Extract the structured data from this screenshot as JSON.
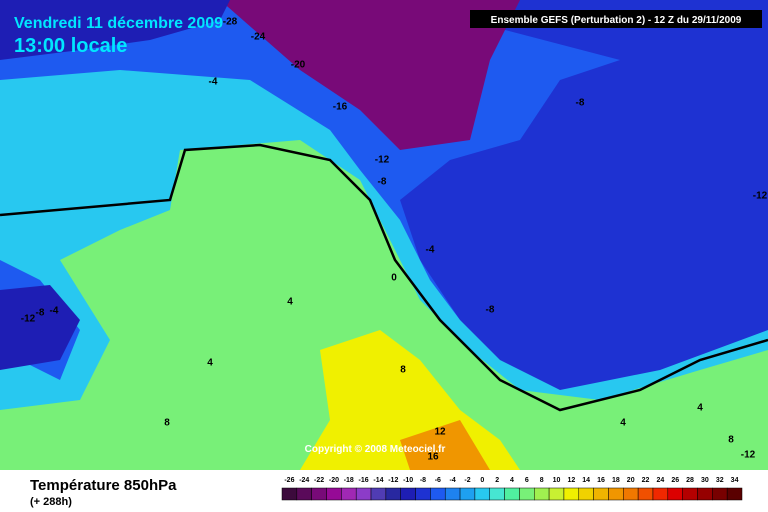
{
  "header": {
    "date": "Vendredi 11 décembre 2009",
    "time": "13:00 locale",
    "model": "Ensemble GEFS (Perturbation 2)  -  12 Z du 29/11/2009"
  },
  "map": {
    "contour_labels": [
      "-28",
      "-24",
      "-20",
      "-16",
      "-12",
      "-8",
      "-4",
      "-8",
      "-12",
      "-4",
      "0",
      "4",
      "-8",
      "-12",
      "-8",
      "-4",
      "4",
      "8",
      "8",
      "12",
      "16",
      "4",
      "4",
      "8",
      "-12"
    ],
    "copyright": "Copyright © 2008 Meteociel.fr"
  },
  "footer": {
    "title": "Température 850hPa",
    "lead": "(+ 288h)"
  },
  "legend": {
    "ticks": [
      -26,
      -24,
      -22,
      -20,
      -18,
      -16,
      -14,
      -12,
      -10,
      -8,
      -6,
      -4,
      -2,
      0,
      2,
      4,
      6,
      8,
      10,
      12,
      14,
      16,
      18,
      20,
      22,
      24,
      26,
      28,
      30,
      32,
      34
    ],
    "colors": [
      "#3c0a3c",
      "#5a0a5a",
      "#780a78",
      "#960a96",
      "#a028b4",
      "#8c3cc8",
      "#503cb4",
      "#2828a0",
      "#1e1eb4",
      "#1e32d2",
      "#1e5af0",
      "#1e82f0",
      "#1ea0f0",
      "#28c8f0",
      "#46e6d2",
      "#50f0a0",
      "#78f078",
      "#a0f050",
      "#c8f032",
      "#f0f000",
      "#f0d200",
      "#f0b400",
      "#f09600",
      "#f07800",
      "#f05000",
      "#f02800",
      "#dc0000",
      "#b40000",
      "#960000",
      "#780000",
      "#5a0000"
    ]
  }
}
